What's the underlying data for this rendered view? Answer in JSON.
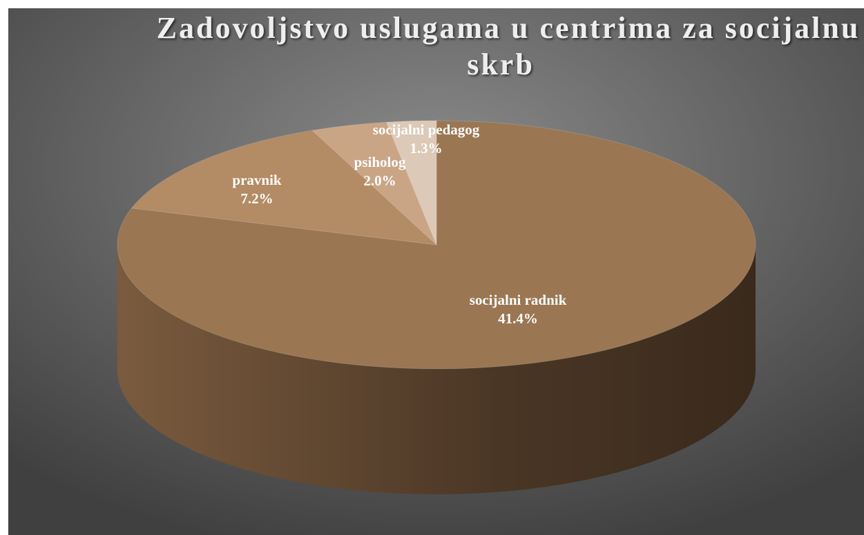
{
  "chart_data": {
    "type": "pie3d",
    "title": "Zadovoljstvo uslugama u centrima za socijalnu skrb",
    "categories": [
      "socijalni radnik",
      "pravnik",
      "psiholog",
      "socijalni pedagog"
    ],
    "values": [
      41.4,
      7.2,
      2.0,
      1.3
    ],
    "value_labels": [
      "41.4%",
      "7.2%",
      "2.0%",
      "1.3%"
    ],
    "colors": [
      "#9a7653",
      "#b38b64",
      "#c9a586",
      "#ddc9b7"
    ]
  }
}
